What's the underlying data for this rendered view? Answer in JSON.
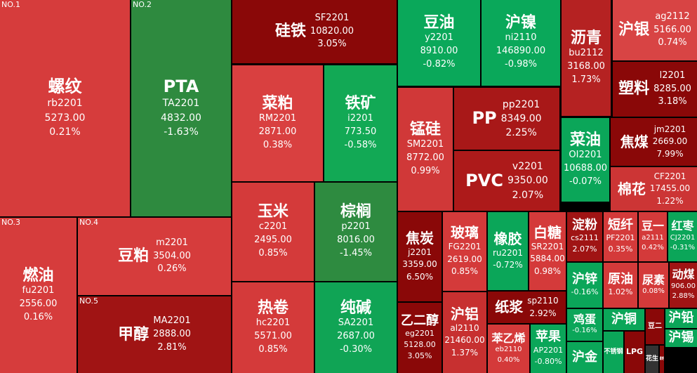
{
  "tiles": [
    {
      "rank": "NO.1",
      "name": "螺纹",
      "code": "rb2201",
      "price": "5273.00",
      "change": "0.21%",
      "color": "#d63c3c"
    },
    {
      "rank": "NO.2",
      "name": "PTA",
      "code": "TA2201",
      "price": "4832.00",
      "change": "-1.63%",
      "color": "#2e8a3f"
    },
    {
      "name": "硅铁",
      "code": "SF2201",
      "price": "10820.00",
      "change": "3.05%",
      "color": "#8a0808"
    },
    {
      "name": "豆油",
      "code": "y2201",
      "price": "8910.00",
      "change": "-0.82%",
      "color": "#0aa85a"
    },
    {
      "name": "沪镍",
      "code": "ni2110",
      "price": "146890.00",
      "change": "-0.98%",
      "color": "#0aa85a"
    },
    {
      "name": "沥青",
      "code": "bu2112",
      "price": "3168.00",
      "change": "1.73%",
      "color": "#b52222"
    },
    {
      "name": "沪银",
      "code": "ag2112",
      "price": "5166.00",
      "change": "0.74%",
      "color": "#d84444"
    },
    {
      "name": "塑料",
      "code": "l2201",
      "price": "8285.00",
      "change": "3.18%",
      "color": "#8a0808"
    },
    {
      "name": "菜粕",
      "code": "RM2201",
      "price": "2871.00",
      "change": "0.38%",
      "color": "#d94040"
    },
    {
      "name": "铁矿",
      "code": "i2201",
      "price": "773.50",
      "change": "-0.58%",
      "color": "#12a955"
    },
    {
      "name": "锰硅",
      "code": "SM2201",
      "price": "8772.00",
      "change": "0.99%",
      "color": "#d03838"
    },
    {
      "name": "PP",
      "code": "pp2201",
      "price": "8349.00",
      "change": "2.25%",
      "color": "#a81818"
    },
    {
      "name": "PVC",
      "code": "v2201",
      "price": "9350.00",
      "change": "2.07%",
      "color": "#ad1a1a"
    },
    {
      "name": "菜油",
      "code": "OI2201",
      "price": "10688.00",
      "change": "-0.07%",
      "color": "#0ba659"
    },
    {
      "name": "焦煤",
      "code": "jm2201",
      "price": "2669.00",
      "change": "7.99%",
      "color": "#8a0808"
    },
    {
      "name": "棉花",
      "code": "CF2201",
      "price": "17455.00",
      "change": "1.22%",
      "color": "#cc3535"
    },
    {
      "rank": "NO.3",
      "name": "燃油",
      "code": "fu2201",
      "price": "2556.00",
      "change": "0.16%",
      "color": "#d63c3c"
    },
    {
      "rank": "NO.4",
      "name": "豆粕",
      "code": "m2201",
      "price": "3504.00",
      "change": "0.26%",
      "color": "#d63c3c"
    },
    {
      "rank": "NO.5",
      "name": "甲醇",
      "code": "MA2201",
      "price": "2888.00",
      "change": "2.81%",
      "color": "#a01414"
    },
    {
      "name": "玉米",
      "code": "c2201",
      "price": "2495.00",
      "change": "0.85%",
      "color": "#d43a3a"
    },
    {
      "name": "棕榈",
      "code": "p2201",
      "price": "8016.00",
      "change": "-1.45%",
      "color": "#2e8b40"
    },
    {
      "name": "热卷",
      "code": "hc2201",
      "price": "5571.00",
      "change": "0.85%",
      "color": "#d43a3a"
    },
    {
      "name": "纯碱",
      "code": "SA2201",
      "price": "2687.00",
      "change": "-0.30%",
      "color": "#10a455"
    },
    {
      "name": "焦炭",
      "code": "j2201",
      "price": "3359.00",
      "change": "6.50%",
      "color": "#8a0808"
    },
    {
      "name": "玻璃",
      "code": "FG2201",
      "price": "2619.00",
      "change": "0.85%",
      "color": "#d43a3a"
    },
    {
      "name": "乙二醇",
      "code": "eg2201",
      "price": "5128.00",
      "change": "3.05%",
      "color": "#8a0808"
    },
    {
      "name": "沪铝",
      "code": "al2110",
      "price": "21460.00",
      "change": "1.37%",
      "color": "#c73030"
    },
    {
      "name": "橡胶",
      "code": "ru2201",
      "change": "-0.72%",
      "color": "#0ba659"
    },
    {
      "name": "白糖",
      "code": "SR2201",
      "price": "5884.00",
      "change": "0.98%",
      "color": "#d43a3a"
    },
    {
      "name": "纸浆",
      "code": "sp2110",
      "change": "2.92%",
      "color": "#8a0808"
    },
    {
      "name": "苯乙烯",
      "code": "eb2110",
      "change": "0.40%",
      "color": "#d43a3a"
    },
    {
      "name": "苹果",
      "code": "AP2201",
      "change": "-0.80%",
      "color": "#0ba659"
    },
    {
      "name": "淀粉",
      "code": "cs2111",
      "change": "2.07%",
      "color": "#a01414"
    },
    {
      "name": "短纤",
      "code": "PF2201",
      "change": "0.35%",
      "color": "#d43a3a"
    },
    {
      "name": "豆一",
      "code": "a2111",
      "change": "0.42%",
      "color": "#d43a3a"
    },
    {
      "name": "红枣",
      "code": "CJ2201",
      "change": "-0.31%",
      "color": "#0ba659"
    },
    {
      "name": "沪锌",
      "change": "-0.16%",
      "color": "#0ba659"
    },
    {
      "name": "原油",
      "change": "1.02%",
      "color": "#d43a3a"
    },
    {
      "name": "尿素",
      "change": "0.08%",
      "color": "#d43a3a"
    },
    {
      "name": "动煤",
      "price": "906.00",
      "change": "2.88%",
      "color": "#a01414"
    },
    {
      "name": "鸡蛋",
      "change": "-0.16%",
      "color": "#0ba659"
    },
    {
      "name": "沪铜",
      "color": "#0ba659"
    },
    {
      "name": "豆二",
      "color": "#8a0808"
    },
    {
      "name": "沪铅",
      "color": "#0ba659"
    },
    {
      "name": "沪金",
      "color": "#0ba659"
    },
    {
      "name": "不锈钢",
      "color": "#0ba659"
    },
    {
      "name": "LPG",
      "color": "#8a0808"
    },
    {
      "name": "花生",
      "color": "#333333"
    },
    {
      "name": "菜籽",
      "color": "#8a0808"
    },
    {
      "name": "沪锡",
      "color": "#0ba659"
    }
  ]
}
